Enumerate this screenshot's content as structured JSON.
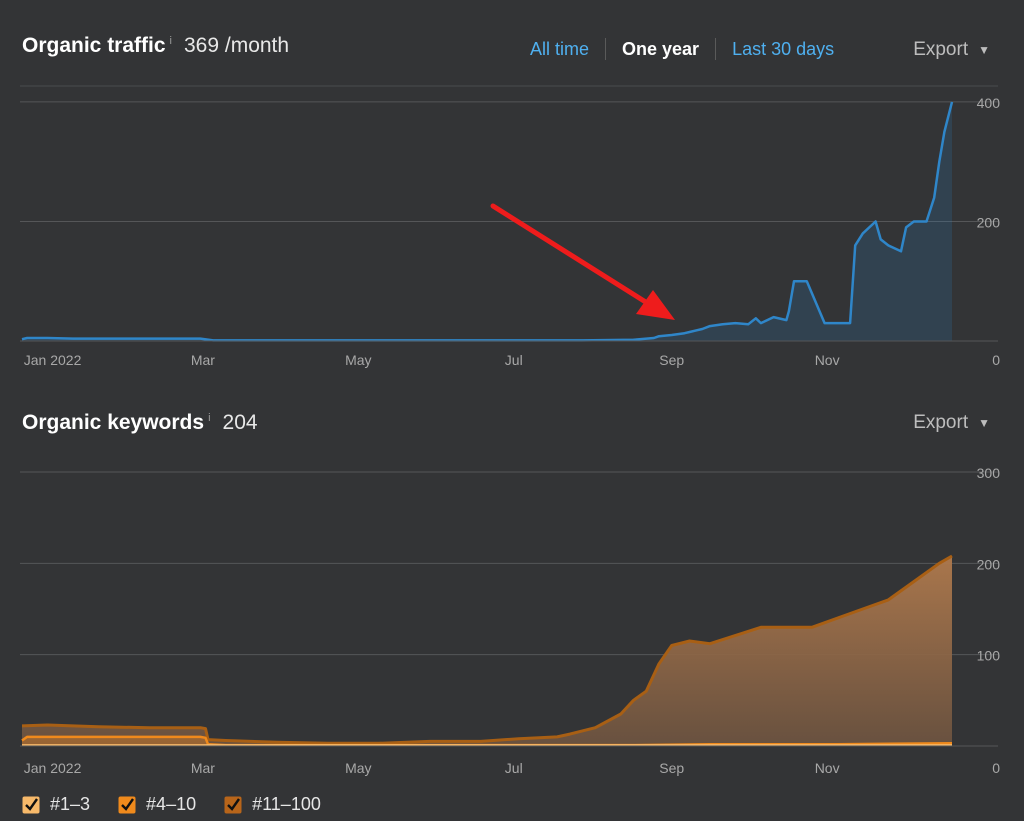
{
  "traffic": {
    "title": "Organic traffic",
    "info": "i",
    "value": "369 /month",
    "tabs": [
      {
        "label": "All time",
        "state": "link"
      },
      {
        "label": "One year",
        "state": "active"
      },
      {
        "label": "Last 30 days",
        "state": "link"
      }
    ],
    "export_label": "Export",
    "caret": "▼"
  },
  "keywords": {
    "title": "Organic keywords",
    "info": "i",
    "value": "204",
    "export_label": "Export",
    "caret": "▼"
  },
  "legend": {
    "items": [
      {
        "label": "#1–3",
        "color": "#f7b96a"
      },
      {
        "label": "#4–10",
        "color": "#f08a1c"
      },
      {
        "label": "#11–100",
        "color": "#b8651a"
      }
    ]
  },
  "chart_data": [
    {
      "type": "area",
      "x_ticks": [
        "Jan 2022",
        "Mar",
        "May",
        "Jul",
        "Sep",
        "Nov"
      ],
      "x_tick_days": [
        12,
        71,
        132,
        193,
        255,
        316
      ],
      "y_ticks": [
        0,
        200,
        400
      ],
      "ylim": [
        0,
        430
      ],
      "xlim": [
        0,
        365
      ],
      "grid": true,
      "color": "#2f86c9",
      "series": [
        {
          "x": [
            0,
            2,
            10,
            20,
            40,
            60,
            70,
            75,
            90,
            120,
            150,
            180,
            200,
            220,
            240,
            248,
            250,
            255,
            260,
            262,
            265,
            267,
            270,
            275,
            280,
            285,
            288,
            290,
            295,
            300,
            301,
            303,
            308,
            315,
            325,
            327,
            330,
            335,
            337,
            340,
            345,
            347,
            350,
            355,
            358,
            360,
            362,
            365
          ],
          "y": [
            3,
            5,
            5,
            4,
            4,
            4,
            4,
            1,
            1,
            1,
            1,
            1,
            1,
            1,
            2,
            5,
            8,
            10,
            13,
            15,
            18,
            20,
            25,
            28,
            30,
            28,
            38,
            30,
            40,
            35,
            50,
            100,
            100,
            30,
            30,
            160,
            180,
            200,
            170,
            160,
            150,
            190,
            200,
            200,
            240,
            300,
            350,
            400
          ]
        }
      ]
    },
    {
      "type": "area",
      "x_ticks": [
        "Jan 2022",
        "Mar",
        "May",
        "Jul",
        "Sep",
        "Nov"
      ],
      "x_tick_days": [
        12,
        71,
        132,
        193,
        255,
        316
      ],
      "y_ticks": [
        0,
        100,
        200,
        300
      ],
      "ylim": [
        0,
        300
      ],
      "xlim": [
        0,
        365
      ],
      "grid": true,
      "series": [
        {
          "name": "#11–100",
          "x": [
            0,
            10,
            30,
            50,
            65,
            70,
            72,
            73,
            80,
            100,
            120,
            140,
            160,
            180,
            195,
            210,
            215,
            225,
            235,
            240,
            245,
            250,
            255,
            262,
            270,
            290,
            310,
            330,
            340,
            350,
            360,
            365
          ],
          "y": [
            22,
            23,
            21,
            20,
            20,
            20,
            19,
            7,
            6,
            4,
            3,
            3,
            5,
            5,
            8,
            10,
            13,
            20,
            35,
            50,
            60,
            90,
            110,
            115,
            112,
            130,
            130,
            150,
            160,
            180,
            200,
            208
          ]
        },
        {
          "name": "#4–10",
          "x": [
            0,
            2,
            8,
            60,
            70,
            72,
            73,
            80,
            150,
            200,
            240,
            270,
            320,
            365
          ],
          "y": [
            6,
            10,
            10,
            10,
            10,
            9,
            2,
            1,
            1,
            1,
            1,
            2,
            2,
            3
          ]
        },
        {
          "name": "#1–3",
          "x": [
            0,
            365
          ],
          "y": [
            1,
            1
          ]
        }
      ]
    }
  ]
}
